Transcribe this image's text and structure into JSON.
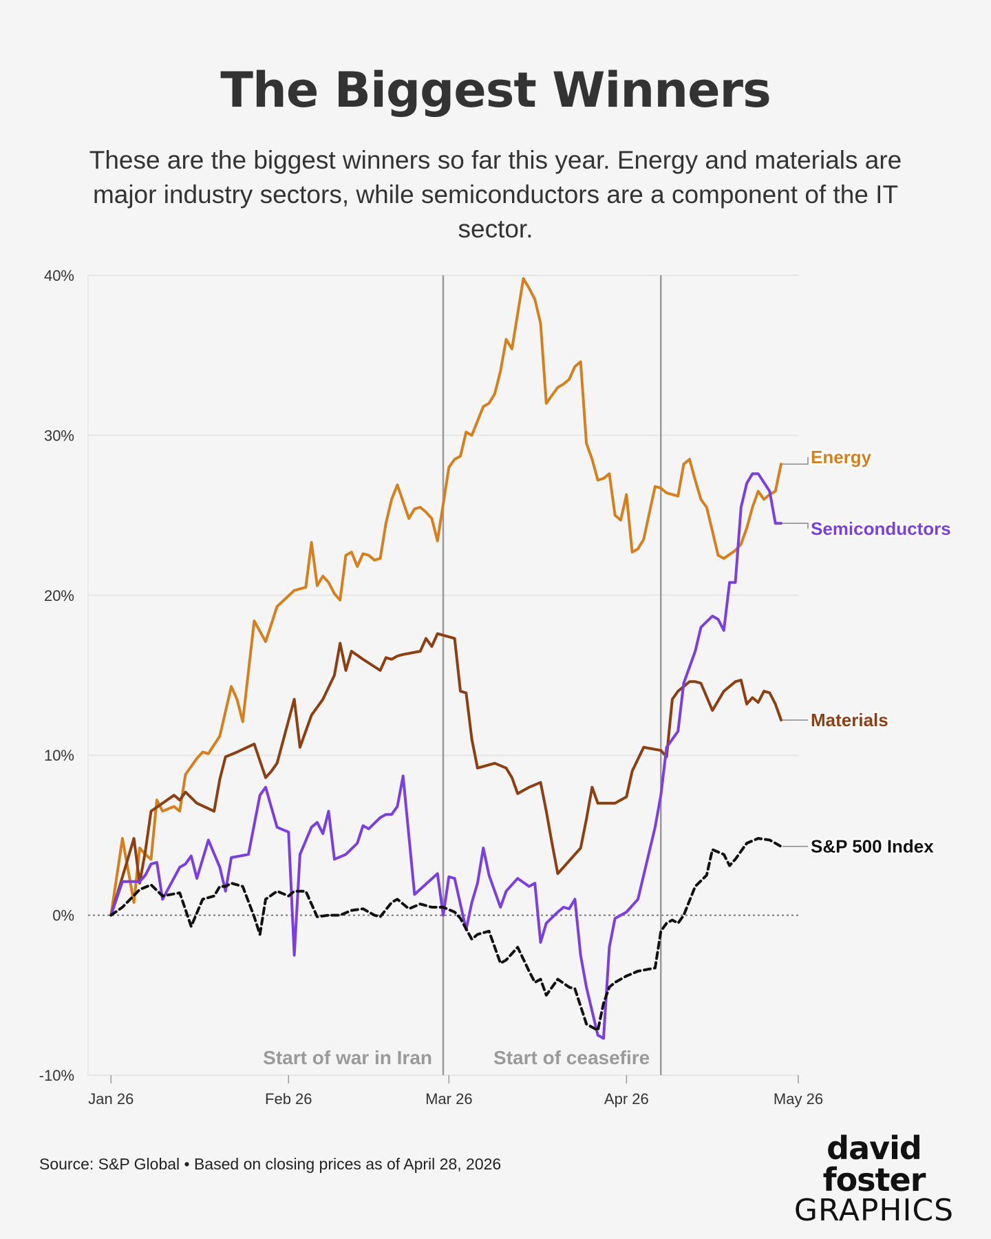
{
  "title": "The Biggest Winners",
  "subtitle": "These are the biggest winners so far this year. Energy and materials are major industry sectors, while semiconductors are a component of the IT sector.",
  "source": "Source: S&P Global • Based on closing prices as of April 28, 2026",
  "logo": {
    "line1": "david foster",
    "line2": "GRAPHICS"
  },
  "chart_data": {
    "type": "line",
    "ylim": [
      -10,
      40
    ],
    "yticks": [
      -10,
      0,
      10,
      20,
      30,
      40
    ],
    "ytick_labels": [
      "-10%",
      "0%",
      "10%",
      "20%",
      "30%",
      "40%"
    ],
    "xlim": [
      "2025-12-28",
      "2026-05-01"
    ],
    "xticks": [
      "2026-01-01",
      "2026-02-01",
      "2026-03-01",
      "2026-04-01",
      "2026-05-01"
    ],
    "xtick_labels": [
      "Jan 26",
      "Feb 26",
      "Mar 26",
      "Apr 26",
      "May 26"
    ],
    "grid": true,
    "zero_line": "dotted",
    "events": [
      {
        "date": "2026-02-28",
        "label": "Start of war in Iran"
      },
      {
        "date": "2026-04-07",
        "label": "Start of ceasefire"
      }
    ],
    "colors": {
      "Energy": "#d4801f",
      "Materials": "#8b3f12",
      "Semiconductors": "#7b3fe0",
      "S&P 500 Index": "#111111"
    },
    "series": [
      {
        "name": "Energy",
        "x": [
          "2026-01-01",
          "2026-01-03",
          "2026-01-05",
          "2026-01-06",
          "2026-01-07",
          "2026-01-08",
          "2026-01-09",
          "2026-01-10",
          "2026-01-12",
          "2026-01-13",
          "2026-01-14",
          "2026-01-16",
          "2026-01-17",
          "2026-01-18",
          "2026-01-20",
          "2026-01-22",
          "2026-01-23",
          "2026-01-24",
          "2026-01-26",
          "2026-01-28",
          "2026-01-30",
          "2026-02-02",
          "2026-02-04",
          "2026-02-05",
          "2026-02-06",
          "2026-02-07",
          "2026-02-08",
          "2026-02-09",
          "2026-02-10",
          "2026-02-11",
          "2026-02-12",
          "2026-02-13",
          "2026-02-14",
          "2026-02-15",
          "2026-02-16",
          "2026-02-17",
          "2026-02-18",
          "2026-02-19",
          "2026-02-20",
          "2026-02-22",
          "2026-02-23",
          "2026-02-24",
          "2026-02-25",
          "2026-02-26",
          "2026-02-27",
          "2026-03-01",
          "2026-03-02",
          "2026-03-03",
          "2026-03-04",
          "2026-03-05",
          "2026-03-07",
          "2026-03-08",
          "2026-03-09",
          "2026-03-10",
          "2026-03-11",
          "2026-03-12",
          "2026-03-14",
          "2026-03-15",
          "2026-03-16",
          "2026-03-17",
          "2026-03-18",
          "2026-03-19",
          "2026-03-20",
          "2026-03-21",
          "2026-03-22",
          "2026-03-23",
          "2026-03-24",
          "2026-03-25",
          "2026-03-26",
          "2026-03-27",
          "2026-03-28",
          "2026-03-29",
          "2026-03-30",
          "2026-03-31",
          "2026-04-01",
          "2026-04-02",
          "2026-04-03",
          "2026-04-04",
          "2026-04-06",
          "2026-04-07",
          "2026-04-08",
          "2026-04-09",
          "2026-04-10",
          "2026-04-11",
          "2026-04-12",
          "2026-04-13",
          "2026-04-14",
          "2026-04-15",
          "2026-04-16",
          "2026-04-17",
          "2026-04-18",
          "2026-04-20",
          "2026-04-21",
          "2026-04-22",
          "2026-04-23",
          "2026-04-24",
          "2026-04-25",
          "2026-04-26",
          "2026-04-27",
          "2026-04-28"
        ],
        "values": [
          0,
          4.8,
          0.8,
          4.2,
          3.8,
          3.5,
          7.2,
          6.5,
          6.8,
          6.5,
          8.8,
          9.8,
          10.2,
          10.1,
          11.2,
          14.3,
          13.5,
          12.1,
          18.4,
          17.1,
          19.3,
          20.3,
          20.5,
          23.3,
          20.6,
          21.2,
          20.8,
          20.1,
          19.7,
          22.5,
          22.7,
          21.8,
          22.6,
          22.5,
          22.2,
          22.3,
          24.5,
          26.0,
          26.9,
          24.8,
          25.4,
          25.5,
          25.2,
          24.8,
          23.4,
          28.0,
          28.5,
          28.7,
          30.2,
          30.0,
          31.8,
          32.0,
          32.6,
          34.0,
          36.0,
          35.4,
          39.8,
          39.2,
          38.5,
          37.0,
          32.0,
          32.5,
          33.0,
          33.2,
          33.5,
          34.3,
          34.6,
          29.5,
          28.5,
          27.2,
          27.3,
          27.6,
          25.0,
          24.7,
          26.3,
          22.7,
          22.9,
          23.5,
          26.8,
          26.7,
          26.4,
          26.3,
          26.2,
          28.2,
          28.5,
          27.2,
          26.0,
          25.5,
          24.0,
          22.5,
          22.3,
          22.8,
          23.2,
          24.2,
          25.5,
          26.5,
          26.0,
          26.3,
          26.5,
          28.2
        ]
      },
      {
        "name": "Materials",
        "x": [
          "2026-01-01",
          "2026-01-05",
          "2026-01-06",
          "2026-01-07",
          "2026-01-08",
          "2026-01-10",
          "2026-01-12",
          "2026-01-13",
          "2026-01-14",
          "2026-01-16",
          "2026-01-19",
          "2026-01-20",
          "2026-01-21",
          "2026-01-23",
          "2026-01-26",
          "2026-01-28",
          "2026-01-29",
          "2026-01-30",
          "2026-02-02",
          "2026-02-03",
          "2026-02-05",
          "2026-02-06",
          "2026-02-07",
          "2026-02-09",
          "2026-02-10",
          "2026-02-11",
          "2026-02-12",
          "2026-02-14",
          "2026-02-17",
          "2026-02-18",
          "2026-02-19",
          "2026-02-20",
          "2026-02-21",
          "2026-02-24",
          "2026-02-25",
          "2026-02-26",
          "2026-02-27",
          "2026-03-02",
          "2026-03-03",
          "2026-03-04",
          "2026-03-05",
          "2026-03-06",
          "2026-03-09",
          "2026-03-11",
          "2026-03-12",
          "2026-03-13",
          "2026-03-15",
          "2026-03-17",
          "2026-03-18",
          "2026-03-19",
          "2026-03-20",
          "2026-03-24",
          "2026-03-25",
          "2026-03-26",
          "2026-03-27",
          "2026-03-30",
          "2026-03-31",
          "2026-04-01",
          "2026-04-02",
          "2026-04-04",
          "2026-04-07",
          "2026-04-08",
          "2026-04-09",
          "2026-04-10",
          "2026-04-12",
          "2026-04-13",
          "2026-04-14",
          "2026-04-16",
          "2026-04-18",
          "2026-04-20",
          "2026-04-21",
          "2026-04-22",
          "2026-04-23",
          "2026-04-24",
          "2026-04-25",
          "2026-04-26",
          "2026-04-27",
          "2026-04-28"
        ],
        "values": [
          0,
          4.8,
          2.0,
          4.0,
          6.5,
          7.0,
          7.5,
          7.2,
          7.7,
          7.0,
          6.5,
          8.5,
          9.9,
          10.2,
          10.7,
          8.6,
          9.0,
          9.5,
          13.5,
          10.5,
          12.5,
          13.0,
          13.5,
          15.0,
          17.0,
          15.3,
          16.5,
          16.0,
          15.3,
          16.1,
          16.0,
          16.2,
          16.3,
          16.5,
          17.3,
          16.8,
          17.6,
          17.3,
          14.0,
          13.9,
          11.0,
          9.2,
          9.5,
          9.2,
          8.6,
          7.6,
          8.0,
          8.3,
          6.5,
          4.5,
          2.6,
          4.2,
          6.0,
          8.0,
          7.0,
          7.0,
          7.2,
          7.4,
          9.0,
          10.5,
          10.3,
          9.9,
          13.5,
          14.0,
          14.6,
          14.6,
          14.5,
          12.8,
          14.0,
          14.6,
          14.7,
          13.2,
          13.6,
          13.3,
          14.0,
          13.9,
          13.2,
          12.2
        ]
      },
      {
        "name": "Semiconductors",
        "x": [
          "2026-01-01",
          "2026-01-03",
          "2026-01-06",
          "2026-01-07",
          "2026-01-08",
          "2026-01-09",
          "2026-01-10",
          "2026-01-13",
          "2026-01-14",
          "2026-01-15",
          "2026-01-16",
          "2026-01-18",
          "2026-01-20",
          "2026-01-21",
          "2026-01-22",
          "2026-01-25",
          "2026-01-27",
          "2026-01-28",
          "2026-01-30",
          "2026-02-01",
          "2026-02-02",
          "2026-02-03",
          "2026-02-05",
          "2026-02-06",
          "2026-02-07",
          "2026-02-08",
          "2026-02-09",
          "2026-02-11",
          "2026-02-13",
          "2026-02-14",
          "2026-02-15",
          "2026-02-17",
          "2026-02-18",
          "2026-02-19",
          "2026-02-20",
          "2026-02-21",
          "2026-02-23",
          "2026-02-27",
          "2026-02-28",
          "2026-03-01",
          "2026-03-02",
          "2026-03-04",
          "2026-03-05",
          "2026-03-06",
          "2026-03-07",
          "2026-03-08",
          "2026-03-10",
          "2026-03-11",
          "2026-03-13",
          "2026-03-15",
          "2026-03-16",
          "2026-03-17",
          "2026-03-18",
          "2026-03-20",
          "2026-03-21",
          "2026-03-22",
          "2026-03-23",
          "2026-03-24",
          "2026-03-25",
          "2026-03-27",
          "2026-03-28",
          "2026-03-29",
          "2026-03-30",
          "2026-03-31",
          "2026-04-01",
          "2026-04-03",
          "2026-04-06",
          "2026-04-07",
          "2026-04-08",
          "2026-04-09",
          "2026-04-10",
          "2026-04-11",
          "2026-04-13",
          "2026-04-14",
          "2026-04-16",
          "2026-04-17",
          "2026-04-18",
          "2026-04-19",
          "2026-04-20",
          "2026-04-21",
          "2026-04-22",
          "2026-04-23",
          "2026-04-24",
          "2026-04-26",
          "2026-04-27",
          "2026-04-28"
        ],
        "values": [
          0,
          2.1,
          2.1,
          2.5,
          3.2,
          3.3,
          1.0,
          3.0,
          3.2,
          3.7,
          2.3,
          4.7,
          3.0,
          1.5,
          3.6,
          3.8,
          7.5,
          8.0,
          5.5,
          5.2,
          -2.5,
          3.8,
          5.5,
          5.8,
          5.1,
          6.5,
          3.5,
          3.8,
          4.5,
          5.6,
          5.4,
          6.1,
          6.3,
          6.3,
          6.8,
          8.7,
          1.3,
          2.6,
          0.0,
          2.4,
          2.3,
          -0.9,
          0.8,
          2.0,
          4.2,
          2.5,
          0.5,
          1.5,
          2.3,
          1.8,
          2.0,
          -1.7,
          -0.5,
          0.2,
          0.5,
          0.4,
          1.0,
          -2.5,
          -4.5,
          -7.5,
          -7.7,
          -2.0,
          -0.2,
          0.0,
          0.2,
          1.0,
          5.5,
          7.5,
          10.5,
          11.0,
          11.5,
          14.5,
          16.5,
          18.0,
          18.7,
          18.5,
          17.8,
          20.8,
          20.8,
          25.5,
          27.0,
          27.6,
          27.6,
          26.5,
          24.5,
          24.5
        ]
      },
      {
        "name": "S&P 500 Index",
        "x": [
          "2026-01-01",
          "2026-01-03",
          "2026-01-06",
          "2026-01-08",
          "2026-01-10",
          "2026-01-13",
          "2026-01-15",
          "2026-01-17",
          "2026-01-19",
          "2026-01-20",
          "2026-01-21",
          "2026-01-22",
          "2026-01-24",
          "2026-01-26",
          "2026-01-27",
          "2026-01-28",
          "2026-01-30",
          "2026-02-01",
          "2026-02-02",
          "2026-02-04",
          "2026-02-06",
          "2026-02-08",
          "2026-02-10",
          "2026-02-12",
          "2026-02-14",
          "2026-02-16",
          "2026-02-17",
          "2026-02-19",
          "2026-02-20",
          "2026-02-22",
          "2026-02-24",
          "2026-02-26",
          "2026-02-28",
          "2026-03-02",
          "2026-03-03",
          "2026-03-05",
          "2026-03-06",
          "2026-03-08",
          "2026-03-10",
          "2026-03-11",
          "2026-03-13",
          "2026-03-15",
          "2026-03-16",
          "2026-03-17",
          "2026-03-18",
          "2026-03-20",
          "2026-03-22",
          "2026-03-23",
          "2026-03-25",
          "2026-03-27",
          "2026-03-28",
          "2026-03-29",
          "2026-03-30",
          "2026-04-01",
          "2026-04-03",
          "2026-04-06",
          "2026-04-07",
          "2026-04-08",
          "2026-04-09",
          "2026-04-10",
          "2026-04-11",
          "2026-04-13",
          "2026-04-15",
          "2026-04-16",
          "2026-04-18",
          "2026-04-19",
          "2026-04-20",
          "2026-04-21",
          "2026-04-22",
          "2026-04-24",
          "2026-04-26",
          "2026-04-27",
          "2026-04-28"
        ],
        "values": [
          0,
          0.5,
          1.6,
          1.9,
          1.2,
          1.4,
          -0.7,
          1.0,
          1.2,
          1.8,
          1.8,
          2.0,
          1.8,
          -0.1,
          -1.2,
          1.0,
          1.5,
          1.2,
          1.5,
          1.5,
          -0.1,
          0.0,
          0.0,
          0.3,
          0.4,
          0.0,
          -0.1,
          0.8,
          1.0,
          0.4,
          0.7,
          0.5,
          0.5,
          0.2,
          -0.2,
          -1.5,
          -1.2,
          -1.0,
          -3.0,
          -2.8,
          -2.0,
          -3.5,
          -4.2,
          -4.0,
          -5.0,
          -4.0,
          -4.5,
          -4.6,
          -6.8,
          -7.2,
          -5.5,
          -4.5,
          -4.2,
          -3.8,
          -3.5,
          -3.3,
          -1.0,
          -0.5,
          -0.3,
          -0.5,
          0.0,
          1.8,
          2.5,
          4.1,
          3.8,
          3.1,
          3.5,
          4.0,
          4.5,
          4.8,
          4.7,
          4.5,
          4.3
        ]
      }
    ]
  }
}
